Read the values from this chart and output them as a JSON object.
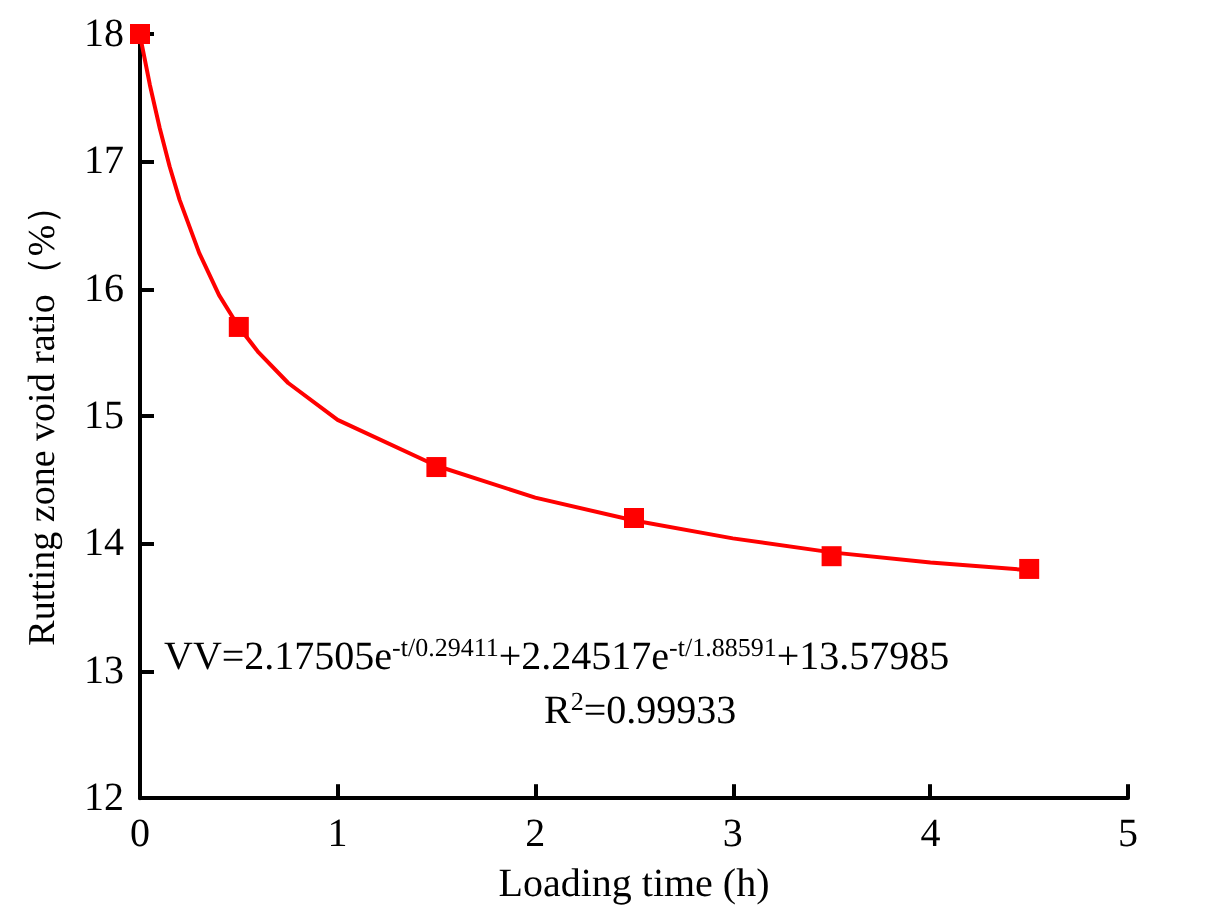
{
  "chart_data": {
    "type": "scatter",
    "xlabel": "Loading time (h)",
    "ylabel": "Rutting zone void ratio（%）",
    "xlim": [
      0,
      5
    ],
    "xticks": [
      0,
      1,
      2,
      3,
      4,
      5
    ],
    "ylim": [
      12,
      18
    ],
    "yticks": [
      12,
      13,
      14,
      15,
      16,
      17,
      18
    ],
    "grid": false,
    "marker": "square",
    "series": [
      {
        "color": "#ff0000",
        "x": [
          0,
          0.5,
          1.5,
          2.5,
          3.5,
          4.5
        ],
        "values": [
          18.0,
          15.7,
          14.6,
          14.2,
          13.9,
          13.8
        ]
      },
      {
        "type": "line",
        "color": "#ff0000",
        "marker": "none",
        "x": [
          0,
          0.05,
          0.1,
          0.15,
          0.2,
          0.3,
          0.4,
          0.5,
          0.6,
          0.75,
          1,
          1.5,
          2,
          2.5,
          3,
          3.5,
          4,
          4.5
        ],
        "values": [
          17.99,
          17.6,
          17.26,
          16.96,
          16.7,
          16.28,
          15.95,
          15.7,
          15.5,
          15.26,
          14.97,
          14.61,
          14.36,
          14.18,
          14.04,
          13.93,
          13.85,
          13.79
        ]
      }
    ],
    "annotations": [
      "VV=2.17505e$^{-t/0.29411}$+2.24517e$^{-t/1.88591}$+13.57985",
      "R$^{2}$=0.99933"
    ]
  }
}
